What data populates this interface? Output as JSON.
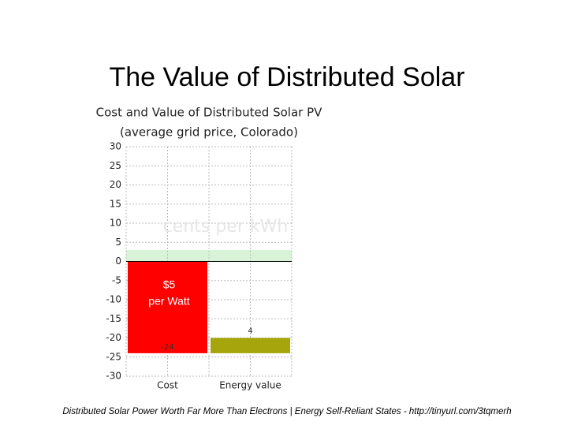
{
  "slide_title": "The Value of Distributed Solar",
  "chart_data": {
    "type": "waterfall",
    "title": "Cost and Value of Distributed Solar PV",
    "subtitle": "(average grid price, Colorado)",
    "watermark": "cents per kWh",
    "categories": [
      "Cost",
      "Energy value"
    ],
    "values": [
      -24,
      4
    ],
    "colors": [
      "#ff0000",
      "#a6a60c"
    ],
    "annotation": [
      "$5",
      "per Watt"
    ],
    "band": {
      "from": 0,
      "to": 3,
      "color": "#d8f3d8"
    },
    "ylim": [
      -30,
      30
    ],
    "yticks": [
      -30,
      -25,
      -20,
      -15,
      -10,
      -5,
      0,
      5,
      10,
      15,
      20,
      25,
      30
    ],
    "grid": true
  },
  "footer": "Distributed Solar Power Worth Far More Than Electrons | Energy Self-Reliant States - http://tinyurl.com/3tqmerh"
}
